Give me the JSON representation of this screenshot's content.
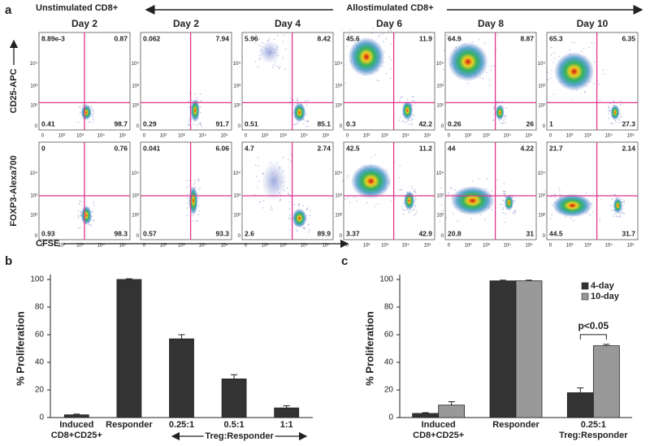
{
  "panel_a": {
    "label": "a",
    "left_header": "Unstimulated CD8+",
    "right_header": "Allostimulated CD8+",
    "columns": [
      "Day 2",
      "Day 2",
      "Day 4",
      "Day 6",
      "Day 8",
      "Day 10"
    ],
    "y_labels": [
      "CD25-APC",
      "FOXP3-Alexa700"
    ],
    "x_label": "CFSE",
    "axis_ticks": [
      "0",
      "10²",
      "10³",
      "10⁴",
      "10⁵"
    ],
    "quadrants": [
      [
        [
          "8.89e-3",
          "0.87",
          "0.41",
          "98.7"
        ],
        [
          "0.062",
          "7.94",
          "0.29",
          "91.7"
        ],
        [
          "5.96",
          "8.42",
          "0.51",
          "85.1"
        ],
        [
          "45.6",
          "11.9",
          "0.3",
          "42.2"
        ],
        [
          "64.9",
          "8.87",
          "0.26",
          "26"
        ],
        [
          "65.3",
          "6.35",
          "1",
          "27.3"
        ]
      ],
      [
        [
          "0",
          "0.76",
          "0.93",
          "98.3"
        ],
        [
          "0.041",
          "6.06",
          "0.57",
          "93.3"
        ],
        [
          "4.7",
          "2.74",
          "2.6",
          "89.9"
        ],
        [
          "42.5",
          "11.2",
          "3.37",
          "42.9"
        ],
        [
          "44",
          "4.22",
          "20.8",
          "31"
        ],
        [
          "21.7",
          "2.14",
          "44.5",
          "31.7"
        ]
      ]
    ]
  },
  "chart_data": [
    {
      "type": "bar",
      "label": "b",
      "ylabel": "% Proliferation",
      "categories": [
        "Induced CD8+CD25+",
        "Responder",
        "0.25:1",
        "0.5:1",
        "1:1"
      ],
      "values": [
        2,
        100,
        57,
        28,
        7
      ],
      "errors": [
        0.5,
        0.5,
        3,
        3,
        1.5
      ],
      "color": "#333333",
      "ylim": [
        0,
        100
      ],
      "yticks": [
        0,
        20,
        40,
        60,
        80,
        100
      ],
      "group_label": "Treg:Responder"
    },
    {
      "type": "bar",
      "label": "c",
      "ylabel": "% Proliferation",
      "categories": [
        "Induced CD8+CD25+",
        "Responder",
        "0.25:1 Treg:Responder"
      ],
      "series": [
        {
          "name": "4-day",
          "color": "#333333",
          "values": [
            3,
            99,
            18
          ],
          "errors": [
            0.5,
            0.5,
            3.5
          ]
        },
        {
          "name": "10-day",
          "color": "#999999",
          "values": [
            9,
            99,
            52
          ],
          "errors": [
            2.5,
            0.5,
            1
          ]
        }
      ],
      "ylim": [
        0,
        100
      ],
      "yticks": [
        0,
        20,
        40,
        60,
        80,
        100
      ],
      "legend": "upper right",
      "annotation": "p<0.05"
    }
  ]
}
